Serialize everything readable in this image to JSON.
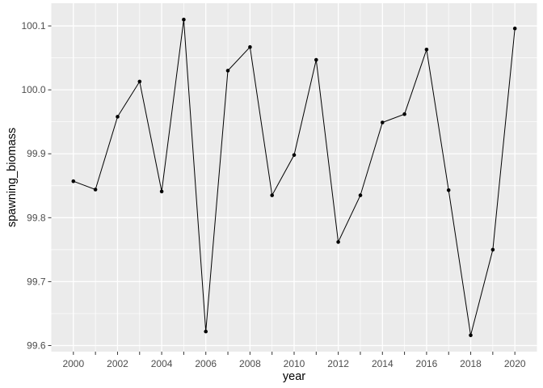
{
  "chart_data": {
    "type": "line",
    "title": "",
    "xlabel": "year",
    "ylabel": "spawning_biomass",
    "x": [
      2000,
      2001,
      2002,
      2003,
      2004,
      2005,
      2006,
      2007,
      2008,
      2009,
      2010,
      2011,
      2012,
      2013,
      2014,
      2015,
      2016,
      2017,
      2018,
      2019,
      2020
    ],
    "values": [
      99.857,
      99.844,
      99.958,
      100.013,
      99.841,
      100.11,
      99.622,
      100.03,
      100.067,
      99.835,
      99.898,
      100.047,
      99.762,
      99.835,
      99.949,
      99.962,
      100.063,
      99.843,
      99.616,
      99.75,
      100.096
    ],
    "xlim": [
      1999,
      2021
    ],
    "ylim": [
      99.5905,
      100.1355
    ],
    "x_axis": {
      "tick_years": [
        2000,
        2001,
        2002,
        2003,
        2004,
        2005,
        2006,
        2007,
        2008,
        2009,
        2010,
        2011,
        2012,
        2013,
        2014,
        2015,
        2016,
        2017,
        2018,
        2019,
        2020
      ],
      "label_years": [
        2000,
        2002,
        2004,
        2006,
        2008,
        2010,
        2012,
        2014,
        2016,
        2018,
        2020
      ],
      "labels": [
        "2000",
        "2002",
        "2004",
        "2006",
        "2008",
        "2010",
        "2012",
        "2014",
        "2016",
        "2018",
        "2020"
      ],
      "minor_years": [
        2001,
        2003,
        2005,
        2007,
        2009,
        2011,
        2013,
        2015,
        2017,
        2019
      ]
    },
    "y_axis": {
      "ticks": [
        99.6,
        99.7,
        99.8,
        99.9,
        100.0,
        100.1
      ],
      "labels": [
        "99.6",
        "99.7",
        "99.8",
        "99.9",
        "100.0",
        "100.1"
      ],
      "minor": [
        99.65,
        99.75,
        99.85,
        99.95,
        100.05
      ]
    },
    "grid": "major and minor, white on gray panel",
    "legend": "none",
    "style": {
      "panel_bg": "#ebebeb",
      "grid_color": "#ffffff",
      "line_color": "#000000",
      "point_color": "#000000",
      "tick_color": "#333333",
      "tick_label_color": "#4d4d4d",
      "axis_title_color": "#000000",
      "background": "#ffffff"
    }
  }
}
